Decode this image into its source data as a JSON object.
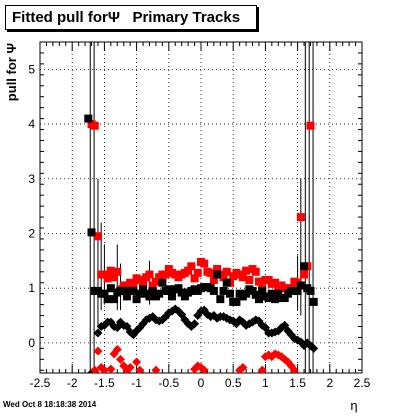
{
  "title": "Fitted pull forΨ   Primary Tracks",
  "timestamp": "Wed Oct  8 18:18:38 2014",
  "chart_data": {
    "type": "scatter",
    "title": "Fitted pull forΨ   Primary Tracks",
    "xlabel": "η",
    "ylabel": "pull for Ψ",
    "xlim": [
      -2.5,
      2.5
    ],
    "ylim": [
      -0.55,
      5.5
    ],
    "grid": true,
    "x_ticks": [
      "-2.5",
      "-2",
      "-1.5",
      "-1",
      "-0.5",
      "0",
      "0.5",
      "1",
      "1.5",
      "2",
      "2.5"
    ],
    "y_ticks": [
      "0",
      "1",
      "2",
      "3",
      "4",
      "5"
    ],
    "series": [
      {
        "marker": "square",
        "color": "#ff0000",
        "points": [
          [
            -1.7,
            4.0
          ],
          [
            -1.65,
            3.97
          ],
          [
            -1.6,
            1.95
          ],
          [
            -1.55,
            1.25
          ],
          [
            -1.5,
            1.25
          ],
          [
            -1.45,
            1.18
          ],
          [
            -1.4,
            1.32
          ],
          [
            -1.35,
            1.2
          ],
          [
            -1.3,
            1.3
          ],
          [
            -1.25,
            0.98
          ],
          [
            -1.2,
            1.05
          ],
          [
            -1.15,
            1.05
          ],
          [
            -1.1,
            1.1
          ],
          [
            -1.05,
            1.08
          ],
          [
            -1.0,
            1.18
          ],
          [
            -0.95,
            1.15
          ],
          [
            -0.9,
            1.1
          ],
          [
            -0.85,
            1.2
          ],
          [
            -0.8,
            1.25
          ],
          [
            -0.75,
            1.05
          ],
          [
            -0.7,
            1.12
          ],
          [
            -0.65,
            1.2
          ],
          [
            -0.6,
            1.25
          ],
          [
            -0.55,
            1.25
          ],
          [
            -0.5,
            1.35
          ],
          [
            -0.45,
            1.28
          ],
          [
            -0.4,
            1.25
          ],
          [
            -0.35,
            1.2
          ],
          [
            -0.3,
            1.25
          ],
          [
            -0.25,
            1.28
          ],
          [
            -0.2,
            1.32
          ],
          [
            -0.15,
            1.4
          ],
          [
            -0.1,
            1.18
          ],
          [
            -0.05,
            1.28
          ],
          [
            0.0,
            1.48
          ],
          [
            0.05,
            1.45
          ],
          [
            0.1,
            1.3
          ],
          [
            0.15,
            1.28
          ],
          [
            0.2,
            1.15
          ],
          [
            0.25,
            1.35
          ],
          [
            0.3,
            1.25
          ],
          [
            0.35,
            1.2
          ],
          [
            0.4,
            1.3
          ],
          [
            0.45,
            1.1
          ],
          [
            0.5,
            1.22
          ],
          [
            0.55,
            1.28
          ],
          [
            0.6,
            1.25
          ],
          [
            0.65,
            1.2
          ],
          [
            0.7,
            1.32
          ],
          [
            0.75,
            1.15
          ],
          [
            0.8,
            1.35
          ],
          [
            0.85,
            1.3
          ],
          [
            0.9,
            1.12
          ],
          [
            0.95,
            1.0
          ],
          [
            1.0,
            1.15
          ],
          [
            1.05,
            1.15
          ],
          [
            1.1,
            1.08
          ],
          [
            1.15,
            1.1
          ],
          [
            1.2,
            0.98
          ],
          [
            1.25,
            1.05
          ],
          [
            1.3,
            1.0
          ],
          [
            1.35,
            1.0
          ],
          [
            1.4,
            1.0
          ],
          [
            1.45,
            1.12
          ],
          [
            1.5,
            1.1
          ],
          [
            1.55,
            2.3
          ],
          [
            1.6,
            1.25
          ],
          [
            1.65,
            1.4
          ],
          [
            1.7,
            3.97
          ]
        ]
      },
      {
        "marker": "square",
        "color": "#000000",
        "points": [
          [
            -1.75,
            4.1
          ],
          [
            -1.7,
            2.02
          ],
          [
            -1.65,
            0.95
          ],
          [
            -1.6,
            0.95
          ],
          [
            -1.55,
            0.9
          ],
          [
            -1.5,
            0.9
          ],
          [
            -1.45,
            0.8
          ],
          [
            -1.4,
            1.0
          ],
          [
            -1.35,
            0.8
          ],
          [
            -1.3,
            0.92
          ],
          [
            -1.25,
            0.95
          ],
          [
            -1.2,
            0.95
          ],
          [
            -1.15,
            0.85
          ],
          [
            -1.1,
            0.95
          ],
          [
            -1.05,
            0.95
          ],
          [
            -1.0,
            0.8
          ],
          [
            -0.95,
            0.9
          ],
          [
            -0.9,
            0.98
          ],
          [
            -0.85,
            0.9
          ],
          [
            -0.8,
            0.85
          ],
          [
            -0.75,
            0.95
          ],
          [
            -0.7,
            0.85
          ],
          [
            -0.65,
            0.9
          ],
          [
            -0.6,
            1.1
          ],
          [
            -0.55,
            0.95
          ],
          [
            -0.5,
            0.98
          ],
          [
            -0.45,
            0.85
          ],
          [
            -0.4,
            0.98
          ],
          [
            -0.35,
            1.0
          ],
          [
            -0.3,
            0.92
          ],
          [
            -0.25,
            0.85
          ],
          [
            -0.2,
            0.92
          ],
          [
            -0.15,
            0.95
          ],
          [
            -0.1,
            0.98
          ],
          [
            -0.05,
            0.95
          ],
          [
            0.0,
            1.0
          ],
          [
            0.05,
            1.02
          ],
          [
            0.1,
            1.02
          ],
          [
            0.15,
            1.0
          ],
          [
            0.2,
            0.95
          ],
          [
            0.25,
            1.25
          ],
          [
            0.3,
            0.8
          ],
          [
            0.35,
            0.95
          ],
          [
            0.4,
            1.1
          ],
          [
            0.45,
            0.9
          ],
          [
            0.5,
            0.75
          ],
          [
            0.55,
            0.75
          ],
          [
            0.6,
            0.9
          ],
          [
            0.65,
            0.85
          ],
          [
            0.7,
            0.9
          ],
          [
            0.75,
            0.98
          ],
          [
            0.8,
            0.95
          ],
          [
            0.85,
            0.88
          ],
          [
            0.9,
            0.8
          ],
          [
            0.95,
            0.95
          ],
          [
            1.0,
            0.85
          ],
          [
            1.05,
            0.82
          ],
          [
            1.1,
            0.9
          ],
          [
            1.15,
            0.8
          ],
          [
            1.2,
            0.9
          ],
          [
            1.25,
            0.82
          ],
          [
            1.3,
            0.82
          ],
          [
            1.35,
            0.9
          ],
          [
            1.4,
            0.95
          ],
          [
            1.45,
            0.95
          ],
          [
            1.5,
            0.95
          ],
          [
            1.55,
            1.05
          ],
          [
            1.6,
            1.4
          ],
          [
            1.65,
            1.0
          ],
          [
            1.7,
            0.95
          ],
          [
            1.75,
            0.75
          ]
        ]
      },
      {
        "marker": "diamond",
        "color": "#000000",
        "points": [
          [
            -1.7,
            -0.55
          ],
          [
            -1.6,
            0.18
          ],
          [
            -1.55,
            0.3
          ],
          [
            -1.5,
            0.32
          ],
          [
            -1.45,
            0.38
          ],
          [
            -1.4,
            0.38
          ],
          [
            -1.35,
            0.3
          ],
          [
            -1.3,
            0.28
          ],
          [
            -1.25,
            0.38
          ],
          [
            -1.2,
            0.32
          ],
          [
            -1.15,
            0.3
          ],
          [
            -1.1,
            0.2
          ],
          [
            -1.05,
            0.15
          ],
          [
            -1.0,
            0.22
          ],
          [
            -0.95,
            0.28
          ],
          [
            -0.9,
            0.35
          ],
          [
            -0.85,
            0.42
          ],
          [
            -0.8,
            0.45
          ],
          [
            -0.75,
            0.48
          ],
          [
            -0.7,
            0.42
          ],
          [
            -0.65,
            0.4
          ],
          [
            -0.6,
            0.42
          ],
          [
            -0.55,
            0.48
          ],
          [
            -0.5,
            0.55
          ],
          [
            -0.45,
            0.58
          ],
          [
            -0.4,
            0.62
          ],
          [
            -0.35,
            0.58
          ],
          [
            -0.3,
            0.52
          ],
          [
            -0.25,
            0.42
          ],
          [
            -0.2,
            0.35
          ],
          [
            -0.15,
            0.3
          ],
          [
            -0.1,
            0.35
          ],
          [
            -0.05,
            0.5
          ],
          [
            0.0,
            0.58
          ],
          [
            0.05,
            0.6
          ],
          [
            0.1,
            0.52
          ],
          [
            0.15,
            0.48
          ],
          [
            0.2,
            0.5
          ],
          [
            0.25,
            0.45
          ],
          [
            0.3,
            0.48
          ],
          [
            0.35,
            0.48
          ],
          [
            0.4,
            0.45
          ],
          [
            0.45,
            0.42
          ],
          [
            0.5,
            0.4
          ],
          [
            0.55,
            0.35
          ],
          [
            0.6,
            0.42
          ],
          [
            0.65,
            0.38
          ],
          [
            0.7,
            0.32
          ],
          [
            0.75,
            0.35
          ],
          [
            0.8,
            0.38
          ],
          [
            0.85,
            0.42
          ],
          [
            0.9,
            0.4
          ],
          [
            0.95,
            0.32
          ],
          [
            1.0,
            0.28
          ],
          [
            1.05,
            0.18
          ],
          [
            1.1,
            0.18
          ],
          [
            1.15,
            0.2
          ],
          [
            1.2,
            0.22
          ],
          [
            1.25,
            0.28
          ],
          [
            1.3,
            0.32
          ],
          [
            1.35,
            0.22
          ],
          [
            1.4,
            0.15
          ],
          [
            1.45,
            0.08
          ],
          [
            1.5,
            0.05
          ],
          [
            1.55,
            0.02
          ],
          [
            1.6,
            -0.05
          ],
          [
            1.65,
            0.0
          ],
          [
            1.7,
            -0.05
          ],
          [
            1.75,
            -0.1
          ]
        ]
      },
      {
        "marker": "diamond",
        "color": "#ff0000",
        "points": [
          [
            -1.65,
            -0.5
          ],
          [
            -1.6,
            -0.15
          ],
          [
            -1.55,
            -0.45
          ],
          [
            -1.5,
            -0.5
          ],
          [
            -1.4,
            -0.48
          ],
          [
            -1.35,
            -0.2
          ],
          [
            -1.3,
            -0.12
          ],
          [
            -1.25,
            -0.3
          ],
          [
            -1.2,
            -0.42
          ],
          [
            -1.15,
            -0.5
          ],
          [
            -1.1,
            -0.45
          ],
          [
            -1.0,
            -0.35
          ],
          [
            -0.95,
            -0.5
          ],
          [
            -0.7,
            -0.5
          ],
          [
            -0.1,
            -0.48
          ],
          [
            -0.05,
            -0.42
          ],
          [
            0.0,
            -0.45
          ],
          [
            0.05,
            -0.5
          ],
          [
            0.6,
            -0.5
          ],
          [
            0.65,
            -0.45
          ],
          [
            0.95,
            -0.5
          ],
          [
            1.0,
            -0.25
          ],
          [
            1.05,
            -0.22
          ],
          [
            1.1,
            -0.25
          ],
          [
            1.15,
            -0.2
          ],
          [
            1.2,
            -0.22
          ],
          [
            1.25,
            -0.25
          ],
          [
            1.3,
            -0.3
          ],
          [
            1.35,
            -0.35
          ],
          [
            1.4,
            -0.42
          ],
          [
            1.45,
            -0.5
          ]
        ]
      }
    ],
    "error_bars": [
      {
        "x": -1.72,
        "ylo": -0.55,
        "yhi": 5.5
      },
      {
        "x": -1.66,
        "ylo": -0.55,
        "yhi": 5.5
      },
      {
        "x": -1.6,
        "ylo": 0.3,
        "yhi": 3.0
      },
      {
        "x": -1.55,
        "ylo": 0.6,
        "yhi": 2.2
      },
      {
        "x": -1.5,
        "ylo": 0.7,
        "yhi": 1.8
      },
      {
        "x": -1.3,
        "ylo": 0.6,
        "yhi": 1.8
      },
      {
        "x": -1.25,
        "ylo": 0.6,
        "yhi": 1.45
      },
      {
        "x": -0.8,
        "ylo": 0.7,
        "yhi": 1.5
      },
      {
        "x": 1.5,
        "ylo": 0.6,
        "yhi": 1.6
      },
      {
        "x": 1.55,
        "ylo": 0.5,
        "yhi": 3.0
      },
      {
        "x": 1.62,
        "ylo": -0.55,
        "yhi": 5.5
      },
      {
        "x": 1.68,
        "ylo": -0.55,
        "yhi": 5.5
      },
      {
        "x": 1.74,
        "ylo": -0.55,
        "yhi": 5.5
      }
    ]
  }
}
